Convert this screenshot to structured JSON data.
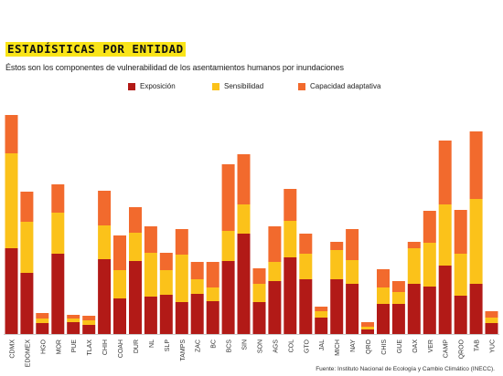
{
  "header": {
    "title": "ESTADÍSTICAS POR ENTIDAD",
    "subtitle": "Éstos son los componentes de vulnerabilidad de los asentamientos humanos por inundaciones"
  },
  "source": "Fuente: Instituto Nacional de Ecología y Cambio Climático (INECC).",
  "colors": {
    "exposicion": "#b21a17",
    "sensibilidad": "#fbc21a",
    "capacidad": "#f26a2d"
  },
  "chart_data": {
    "type": "bar",
    "stacked": true,
    "categories": [
      "CDMX",
      "EDOMEX",
      "HGO",
      "MOR",
      "PUE",
      "TLAX",
      "CHIH",
      "COAH",
      "DUR",
      "NL",
      "SLP",
      "TAMPS",
      "ZAC",
      "BC",
      "BCS",
      "SIN",
      "SON",
      "AGS",
      "COL",
      "GTO",
      "JAL",
      "MICH",
      "NAY",
      "QRO",
      "CHIS",
      "GUE",
      "OAX",
      "VER",
      "CAMP",
      "QROO",
      "TAB",
      "YUC"
    ],
    "series": [
      {
        "name": "Exposición",
        "values": [
          94,
          67,
          12,
          88,
          13,
          10,
          82,
          39,
          80,
          41,
          43,
          35,
          44,
          36,
          80,
          110,
          35,
          58,
          84,
          60,
          18,
          60,
          55,
          5,
          33,
          33,
          55,
          52,
          75,
          42,
          55,
          12
        ]
      },
      {
        "name": "Sensibilidad",
        "values": [
          104,
          56,
          5,
          45,
          4,
          5,
          37,
          31,
          31,
          48,
          27,
          52,
          16,
          15,
          33,
          32,
          20,
          21,
          40,
          28,
          7,
          32,
          26,
          3,
          18,
          13,
          39,
          48,
          67,
          46,
          93,
          6
        ]
      },
      {
        "name": "Capacidad adaptativa",
        "values": [
          42,
          33,
          6,
          31,
          4,
          5,
          38,
          38,
          28,
          29,
          19,
          28,
          19,
          28,
          73,
          55,
          17,
          39,
          35,
          22,
          5,
          9,
          34,
          5,
          20,
          12,
          7,
          35,
          70,
          48,
          74,
          7
        ]
      }
    ],
    "legend_position": "top",
    "xlabel": "",
    "ylabel": "",
    "grid": false
  }
}
